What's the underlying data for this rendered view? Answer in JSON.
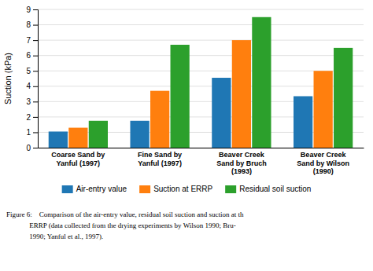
{
  "chart_data": {
    "type": "bar",
    "categories": [
      "Coarse Sand by\nYanful (1997)",
      "Fine Sand by\nYanful (1997)",
      "Beaver Creek\nSand by Bruch\n(1993)",
      "Beaver Creek\nSand by Wilson\n(1990)"
    ],
    "series": [
      {
        "name": "Air-entry value",
        "values": [
          1.05,
          1.75,
          4.55,
          3.35
        ]
      },
      {
        "name": "Suction at ERRP",
        "values": [
          1.3,
          3.7,
          7.0,
          5.0
        ]
      },
      {
        "name": "Residual soil suction",
        "values": [
          1.75,
          6.7,
          8.5,
          6.5
        ]
      }
    ],
    "ylabel": "Suction (kPa)",
    "ylim": [
      0,
      9
    ],
    "yticks": [
      0,
      1,
      2,
      3,
      4,
      5,
      6,
      7,
      8,
      9
    ],
    "grid": true,
    "legend": "bottom",
    "annotations": [
      "Figure 6:    Comparison of the air-entry value, residual soil suction and suction at th",
      "             ERRP (data collected from the drying experiments by Wilson 1990; Bru-",
      "             1990; Yanful et al., 1997)."
    ]
  }
}
